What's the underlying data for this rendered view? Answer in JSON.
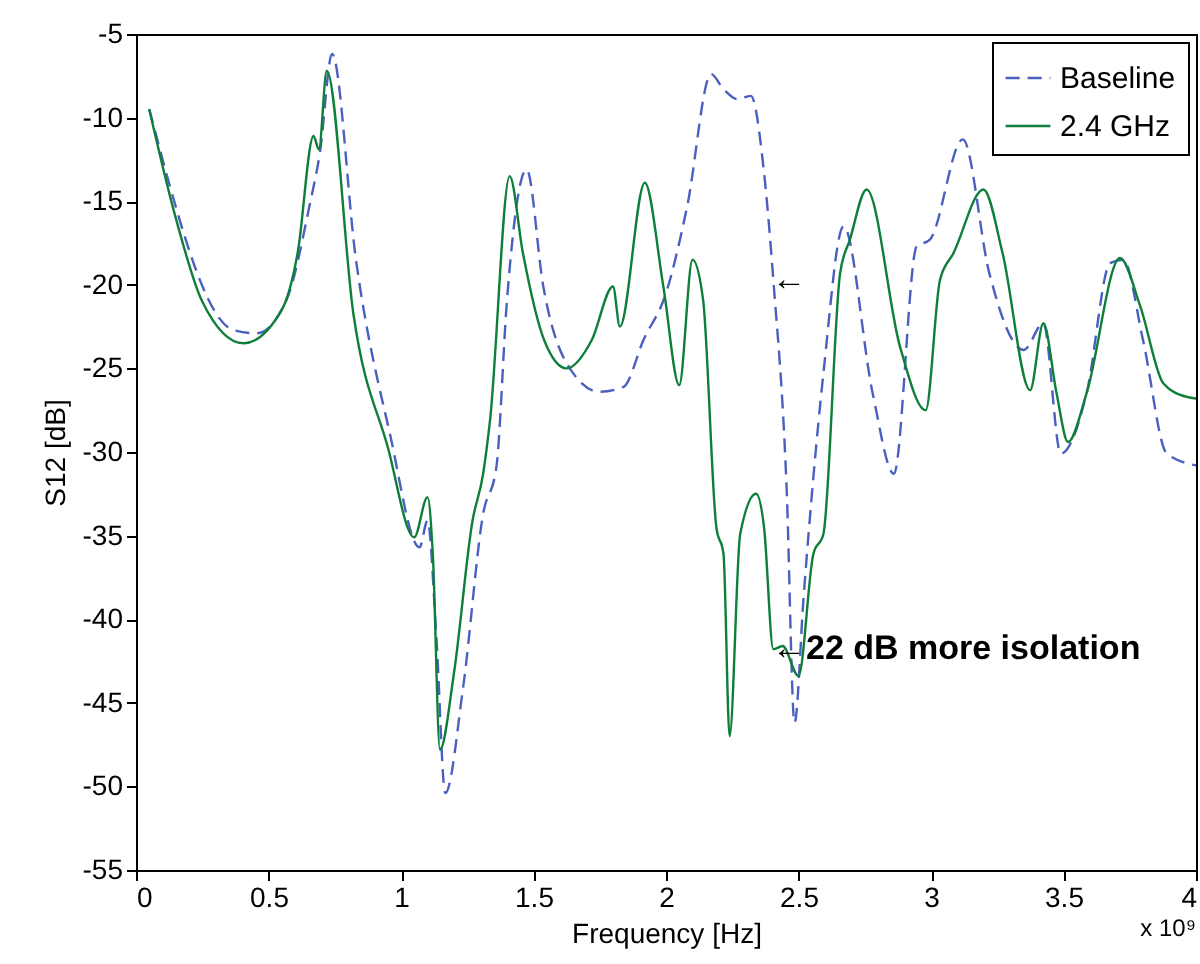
{
  "chart_data": {
    "type": "line",
    "xlabel": "Frequency [Hz]",
    "ylabel": "S12 [dB]",
    "xlim": [
      0,
      4
    ],
    "xticks": [
      0,
      0.5,
      1,
      1.5,
      2,
      2.5,
      3,
      3.5,
      4
    ],
    "ylim": [
      -55,
      -5
    ],
    "yticks": [
      -55,
      -50,
      -45,
      -40,
      -35,
      -30,
      -25,
      -20,
      -15,
      -10,
      -5
    ],
    "grid": false,
    "legend": "top right",
    "marker": "none",
    "annotations": [
      {
        "text": "←",
        "x": 2.4,
        "y": -19.7
      },
      {
        "text": "←22 dB more isolation",
        "x": 2.4,
        "y": -41.8
      },
      "x 10⁹"
    ],
    "series": [
      {
        "name": "Baseline",
        "color": "#4a5fbf",
        "line_style": "dashed",
        "x": [
          0.05,
          0.367,
          0.455,
          0.568,
          0.657,
          0.694,
          0.74,
          0.83,
          0.958,
          1.07,
          1.1,
          1.134,
          1.167,
          1.235,
          1.31,
          1.36,
          1.4,
          1.474,
          1.537,
          1.65,
          1.75,
          1.84,
          1.915,
          2.0,
          2.08,
          2.17,
          2.217,
          2.27,
          2.32,
          2.37,
          2.405,
          2.455,
          2.485,
          2.52,
          2.594,
          2.67,
          2.78,
          2.86,
          2.946,
          2.996,
          3.12,
          3.22,
          3.35,
          3.424,
          3.49,
          3.587,
          3.676,
          3.726,
          3.8,
          3.89,
          4.0
        ],
        "values": [
          -9.5,
          -22.7,
          -22.9,
          -20.9,
          -15.1,
          -12.1,
          -6.2,
          -18.5,
          -28.9,
          -35.7,
          -34.1,
          -41.2,
          -50.4,
          -44.0,
          -33.7,
          -30.9,
          -20.9,
          -13.1,
          -20.1,
          -25.3,
          -26.4,
          -26.1,
          -23.3,
          -20.5,
          -15.3,
          -7.4,
          -8.3,
          -8.9,
          -8.7,
          -13.3,
          -19.7,
          -32.1,
          -46.2,
          -38.5,
          -25.3,
          -16.5,
          -26.5,
          -31.3,
          -17.7,
          -17.3,
          -11.3,
          -19.3,
          -23.9,
          -22.3,
          -30.1,
          -26.5,
          -18.7,
          -18.5,
          -23.3,
          -30.1,
          -30.8
        ]
      },
      {
        "name": "2.4 GHz",
        "color": "#0e7f3a",
        "line_style": "solid",
        "x": [
          0.05,
          0.15,
          0.25,
          0.405,
          0.55,
          0.61,
          0.67,
          0.69,
          0.72,
          0.82,
          0.95,
          1.05,
          1.1,
          1.12,
          1.147,
          1.2,
          1.27,
          1.31,
          1.336,
          1.41,
          1.46,
          1.54,
          1.625,
          1.72,
          1.8,
          1.826,
          1.92,
          1.99,
          2.05,
          2.1,
          2.14,
          2.19,
          2.217,
          2.24,
          2.28,
          2.34,
          2.37,
          2.405,
          2.44,
          2.5,
          2.556,
          2.594,
          2.657,
          2.694,
          2.757,
          2.883,
          2.98,
          3.034,
          3.085,
          3.198,
          3.27,
          3.374,
          3.424,
          3.474,
          3.517,
          3.587,
          3.713,
          3.79,
          3.877,
          3.965,
          4.0
        ],
        "values": [
          -9.5,
          -16.0,
          -21.0,
          -23.5,
          -21.5,
          -18.1,
          -11.1,
          -11.9,
          -7.2,
          -21.7,
          -29.7,
          -35.1,
          -32.7,
          -36.1,
          -47.8,
          -43.2,
          -34.1,
          -31.3,
          -28.1,
          -13.5,
          -18.1,
          -23.3,
          -25.0,
          -23.3,
          -20.1,
          -22.5,
          -13.9,
          -20.1,
          -26.0,
          -18.5,
          -20.9,
          -34.5,
          -36.1,
          -47.0,
          -34.9,
          -32.5,
          -34.5,
          -41.8,
          -41.6,
          -43.4,
          -36.1,
          -34.9,
          -19.3,
          -17.3,
          -14.3,
          -23.7,
          -27.5,
          -19.7,
          -18.1,
          -14.3,
          -18.1,
          -26.3,
          -22.3,
          -26.5,
          -29.4,
          -26.5,
          -18.4,
          -21.3,
          -25.9,
          -26.7,
          -26.8
        ]
      }
    ]
  }
}
